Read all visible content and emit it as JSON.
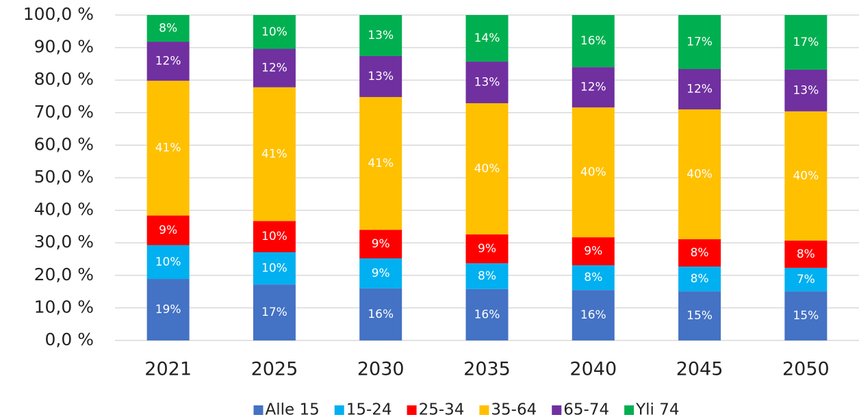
{
  "chart_data": {
    "type": "stacked_bar",
    "categories": [
      "2021",
      "2025",
      "2030",
      "2035",
      "2040",
      "2045",
      "2050"
    ],
    "series": [
      {
        "name": "Alle 15",
        "color": "#4472c4",
        "values": [
          18.9,
          17.2,
          16.0,
          15.8,
          15.5,
          15.1,
          15.1
        ],
        "value_labels": [
          "19%",
          "17%",
          "16%",
          "16%",
          "16%",
          "15%",
          "15%"
        ]
      },
      {
        "name": "15-24",
        "color": "#00b0f0",
        "values": [
          10.4,
          9.9,
          9.2,
          7.9,
          7.6,
          7.6,
          7.2
        ],
        "value_labels": [
          "10%",
          "10%",
          "9%",
          "8%",
          "8%",
          "8%",
          "7%"
        ]
      },
      {
        "name": "25-34",
        "color": "#ff0000",
        "values": [
          9.1,
          9.6,
          8.8,
          8.9,
          8.6,
          8.4,
          8.4
        ],
        "value_labels": [
          "9%",
          "10%",
          "9%",
          "9%",
          "9%",
          "8%",
          "8%"
        ]
      },
      {
        "name": "35-64",
        "color": "#ffc000",
        "values": [
          41.4,
          41.1,
          40.8,
          40.3,
          39.9,
          39.9,
          39.7
        ],
        "value_labels": [
          "41%",
          "41%",
          "41%",
          "40%",
          "40%",
          "40%",
          "40%"
        ]
      },
      {
        "name": "65-74",
        "color": "#7030a0",
        "values": [
          12.0,
          11.8,
          12.6,
          12.8,
          12.4,
          12.4,
          12.8
        ],
        "value_labels": [
          "12%",
          "12%",
          "13%",
          "13%",
          "12%",
          "12%",
          "13%"
        ]
      },
      {
        "name": "Yli 74",
        "color": "#00b050",
        "values": [
          8.2,
          10.4,
          12.6,
          14.3,
          16.0,
          16.6,
          16.8
        ],
        "value_labels": [
          "8%",
          "10%",
          "13%",
          "14%",
          "16%",
          "17%",
          "17%"
        ]
      }
    ],
    "ylim": [
      0,
      100
    ],
    "yticks": [
      {
        "value": 0,
        "label": "0,0 %"
      },
      {
        "value": 10,
        "label": "10,0 %"
      },
      {
        "value": 20,
        "label": "20,0 %"
      },
      {
        "value": 30,
        "label": "30,0 %"
      },
      {
        "value": 40,
        "label": "40,0 %"
      },
      {
        "value": 50,
        "label": "50,0 %"
      },
      {
        "value": 60,
        "label": "60,0 %"
      },
      {
        "value": 70,
        "label": "70,0 %"
      },
      {
        "value": 80,
        "label": "80,0 %"
      },
      {
        "value": 90,
        "label": "90,0 %"
      },
      {
        "value": 100,
        "label": "100,0 %"
      }
    ],
    "grid": true,
    "legend": "bottom"
  }
}
